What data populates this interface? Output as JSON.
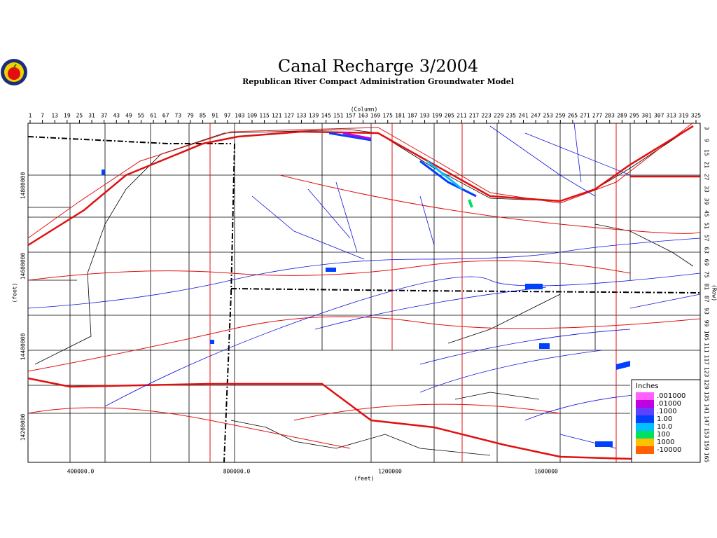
{
  "header": {
    "title": "Canal Recharge 3/2004",
    "subtitle": "Republican River Compact Administration Groundwater Model"
  },
  "axes": {
    "column_label": "(Column)",
    "row_label": "(Row)",
    "x_label": "(feet)",
    "y_label": "(feet)",
    "columns": [
      1,
      7,
      13,
      19,
      25,
      31,
      37,
      43,
      49,
      55,
      61,
      67,
      73,
      79,
      85,
      91,
      97,
      103,
      109,
      115,
      121,
      127,
      133,
      139,
      145,
      151,
      157,
      163,
      169,
      175,
      181,
      187,
      193,
      199,
      205,
      211,
      217,
      223,
      229,
      235,
      241,
      247,
      253,
      259,
      265,
      271,
      277,
      283,
      289,
      295,
      301,
      307,
      313,
      319,
      325
    ],
    "rows": [
      3,
      9,
      15,
      21,
      27,
      33,
      39,
      45,
      51,
      57,
      63,
      69,
      75,
      81,
      87,
      93,
      99,
      105,
      111,
      117,
      123,
      129,
      135,
      141,
      147,
      153,
      159,
      165
    ],
    "x_ticks": [
      "400000.0",
      "800000.0",
      "1200000",
      "1600000"
    ],
    "y_ticks": [
      "14800000",
      "14600000",
      "14400000",
      "14200000"
    ]
  },
  "legend": {
    "title": "Inches",
    "entries": [
      {
        "label": ".001000",
        "color": "#ff60ff"
      },
      {
        "label": ".01000",
        "color": "#c000e0"
      },
      {
        "label": ".1000",
        "color": "#6040ff"
      },
      {
        "label": "1.00",
        "color": "#0040ff"
      },
      {
        "label": "10.0",
        "color": "#00c0ff"
      },
      {
        "label": "100",
        "color": "#00e060"
      },
      {
        "label": "1000",
        "color": "#ffc000"
      },
      {
        "label": "-10000",
        "color": "#ff6000"
      }
    ]
  }
}
